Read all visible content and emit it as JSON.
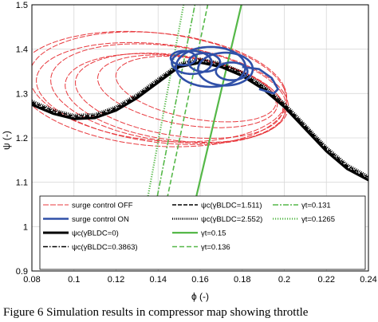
{
  "caption": "Figure 6    Simulation results in compressor map showing throttle",
  "chart_data": {
    "type": "line",
    "title": "",
    "xlabel": "ϕ (-)",
    "ylabel": "ψ (-)",
    "xlim": [
      0.08,
      0.24
    ],
    "ylim": [
      0.9,
      1.5
    ],
    "xticks": [
      "0.08",
      "0.1",
      "0.12",
      "0.14",
      "0.16",
      "0.18",
      "0.2",
      "0.22",
      "0.24"
    ],
    "yticks": [
      "0.9",
      "1",
      "1.1",
      "1.2",
      "1.3",
      "1.4",
      "1.5"
    ],
    "grid": true,
    "legend_placement": "bottom",
    "colors": {
      "off": "#e8383d",
      "on": "#3050a8",
      "throttle": "#55b848",
      "char": "#000000"
    },
    "legend": [
      {
        "key": "off",
        "label": "surge control OFF"
      },
      {
        "key": "on",
        "label": "surge control ON"
      },
      {
        "key": "c0",
        "label": "ψc(γBLDC=0)"
      },
      {
        "key": "c3863",
        "label": "ψc(γBLDC=0.3863)"
      },
      {
        "key": "c1511",
        "label": "ψc(γBLDC=1.511)"
      },
      {
        "key": "c2552",
        "label": "ψc(γBLDC=2.552)"
      },
      {
        "key": "t015",
        "label": "γt=0.15"
      },
      {
        "key": "t0136",
        "label": "γt=0.136"
      },
      {
        "key": "t0131",
        "label": "γt=0.131"
      },
      {
        "key": "t01265",
        "label": "γt=0.1265"
      }
    ],
    "series": [
      {
        "key": "c0",
        "style": "solid-black",
        "x": [
          0.08,
          0.09,
          0.1,
          0.11,
          0.12,
          0.13,
          0.14,
          0.15,
          0.16,
          0.17,
          0.18,
          0.19,
          0.2,
          0.21,
          0.22,
          0.23,
          0.24
        ],
        "y": [
          1.275,
          1.255,
          1.243,
          1.245,
          1.262,
          1.29,
          1.325,
          1.36,
          1.37,
          1.36,
          1.34,
          1.31,
          1.27,
          1.22,
          1.17,
          1.13,
          1.105
        ]
      },
      {
        "key": "c3863",
        "style": "dashdot-black",
        "x": [
          0.08,
          0.09,
          0.1,
          0.11,
          0.12,
          0.13,
          0.14,
          0.15,
          0.16,
          0.17,
          0.18,
          0.19,
          0.2,
          0.21,
          0.22,
          0.23,
          0.24
        ],
        "y": [
          1.278,
          1.258,
          1.246,
          1.248,
          1.265,
          1.293,
          1.328,
          1.362,
          1.373,
          1.363,
          1.343,
          1.313,
          1.273,
          1.224,
          1.174,
          1.134,
          1.108
        ]
      },
      {
        "key": "c1511",
        "style": "dashed-black",
        "x": [
          0.08,
          0.09,
          0.1,
          0.11,
          0.12,
          0.13,
          0.14,
          0.15,
          0.16,
          0.17,
          0.18,
          0.19,
          0.2,
          0.21,
          0.22,
          0.23,
          0.24
        ],
        "y": [
          1.281,
          1.261,
          1.249,
          1.251,
          1.268,
          1.296,
          1.331,
          1.365,
          1.376,
          1.366,
          1.346,
          1.316,
          1.276,
          1.227,
          1.177,
          1.137,
          1.111
        ]
      },
      {
        "key": "c2552",
        "style": "dotted-black",
        "x": [
          0.08,
          0.09,
          0.1,
          0.11,
          0.12,
          0.13,
          0.14,
          0.15,
          0.16,
          0.17,
          0.18,
          0.19,
          0.2,
          0.21,
          0.22,
          0.23,
          0.24
        ],
        "y": [
          1.284,
          1.264,
          1.252,
          1.254,
          1.271,
          1.299,
          1.334,
          1.368,
          1.379,
          1.369,
          1.349,
          1.319,
          1.279,
          1.23,
          1.18,
          1.14,
          1.114
        ]
      },
      {
        "key": "t015",
        "style": "solid-green",
        "x": [
          0.1548,
          0.1796
        ],
        "y": [
          1.0,
          1.5
        ]
      },
      {
        "key": "t0136",
        "style": "dashed-green",
        "x": [
          0.1415,
          0.1636
        ],
        "y": [
          1.0,
          1.5
        ]
      },
      {
        "key": "t0131",
        "style": "dashdot-green",
        "x": [
          0.1368,
          0.1575
        ],
        "y": [
          1.0,
          1.5
        ]
      },
      {
        "key": "t01265",
        "style": "dotted-green",
        "x": [
          0.1325,
          0.1521
        ],
        "y": [
          1.0,
          1.5
        ]
      }
    ],
    "surge_off_orbits": [
      {
        "cx": 0.137,
        "cy": 1.31,
        "rx": 0.063,
        "ry": 0.13,
        "tilt": -0.012
      },
      {
        "cx": 0.14,
        "cy": 1.315,
        "rx": 0.06,
        "ry": 0.124,
        "tilt": -0.012
      },
      {
        "cx": 0.142,
        "cy": 1.3,
        "rx": 0.058,
        "ry": 0.115,
        "tilt": -0.015
      },
      {
        "cx": 0.145,
        "cy": 1.3,
        "rx": 0.054,
        "ry": 0.112,
        "tilt": -0.015
      },
      {
        "cx": 0.148,
        "cy": 1.29,
        "rx": 0.05,
        "ry": 0.1,
        "tilt": -0.015
      },
      {
        "cx": 0.15,
        "cy": 1.295,
        "rx": 0.047,
        "ry": 0.096,
        "tilt": -0.015
      },
      {
        "cx": 0.154,
        "cy": 1.305,
        "rx": 0.04,
        "ry": 0.082,
        "tilt": -0.015
      },
      {
        "cx": 0.158,
        "cy": 1.31,
        "rx": 0.035,
        "ry": 0.074,
        "tilt": -0.015
      }
    ],
    "surge_on_orbits": [
      {
        "cx": 0.165,
        "cy": 1.36,
        "rx": 0.0165,
        "ry": 0.045
      },
      {
        "cx": 0.172,
        "cy": 1.355,
        "rx": 0.013,
        "ry": 0.037
      },
      {
        "cx": 0.156,
        "cy": 1.37,
        "rx": 0.0095,
        "ry": 0.026
      },
      {
        "cx": 0.162,
        "cy": 1.37,
        "rx": 0.0075,
        "ry": 0.021
      },
      {
        "cx": 0.152,
        "cy": 1.38,
        "rx": 0.006,
        "ry": 0.016
      },
      {
        "cx": 0.175,
        "cy": 1.35,
        "rx": 0.0075,
        "ry": 0.02
      }
    ],
    "surge_on_tail": {
      "x": [
        0.18,
        0.188,
        0.194,
        0.197,
        0.195,
        0.188
      ],
      "y": [
        1.36,
        1.355,
        1.335,
        1.31,
        1.3,
        1.31
      ]
    }
  }
}
